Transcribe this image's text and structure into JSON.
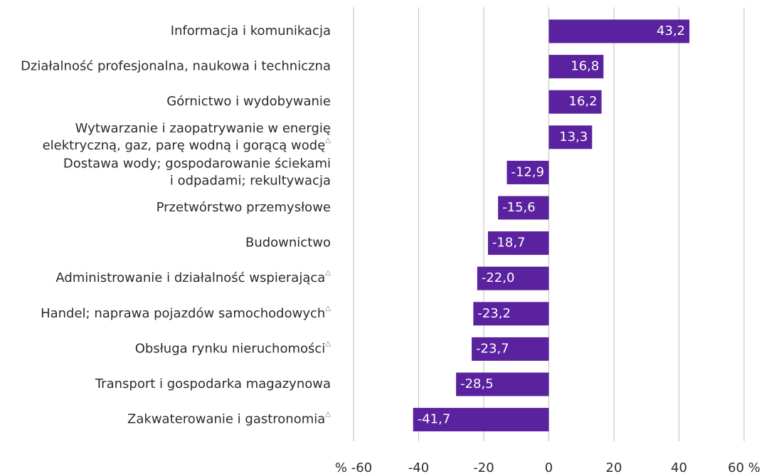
{
  "chart_data": {
    "type": "bar",
    "orientation": "horizontal",
    "categories": [
      "Informacja i komunikacja",
      "Działalność profesjonalna, naukowa i techniczna",
      "Górnictwo i wydobywanie",
      "Wytwarzanie i zaopatrywanie w energię\nelektryczną, gaz, parę wodną i gorącą wodę△",
      "Dostawa wody; gospodarowanie ściekami\ni odpadami; rekultywacja",
      "Przetwórstwo przemysłowe",
      "Budownictwo",
      "Administrowanie i działalność wspierająca△",
      "Handel; naprawa pojazdów  samochodowych△",
      "Obsługa rynku nieruchomości△",
      "Transport i gospodarka magazynowa",
      "Zakwaterowanie i gastronomia△"
    ],
    "values": [
      43.2,
      16.8,
      16.2,
      13.3,
      -12.9,
      -15.6,
      -18.7,
      -22.0,
      -23.2,
      -23.7,
      -28.5,
      -41.7
    ],
    "value_labels": [
      "43,2",
      "16,8",
      "16,2",
      "13,3",
      "-12,9",
      "-15,6",
      "-18,7",
      "-22,0",
      "-23,2",
      "-23,7",
      "-28,5",
      "-41,7"
    ],
    "color": "#5a229e",
    "xlim": [
      -60,
      60
    ],
    "xticks": [
      {
        "value": -60,
        "label": "% -60"
      },
      -40,
      -20,
      0,
      20,
      40,
      {
        "value": 60,
        "label": "60 %"
      }
    ],
    "grid": true
  }
}
